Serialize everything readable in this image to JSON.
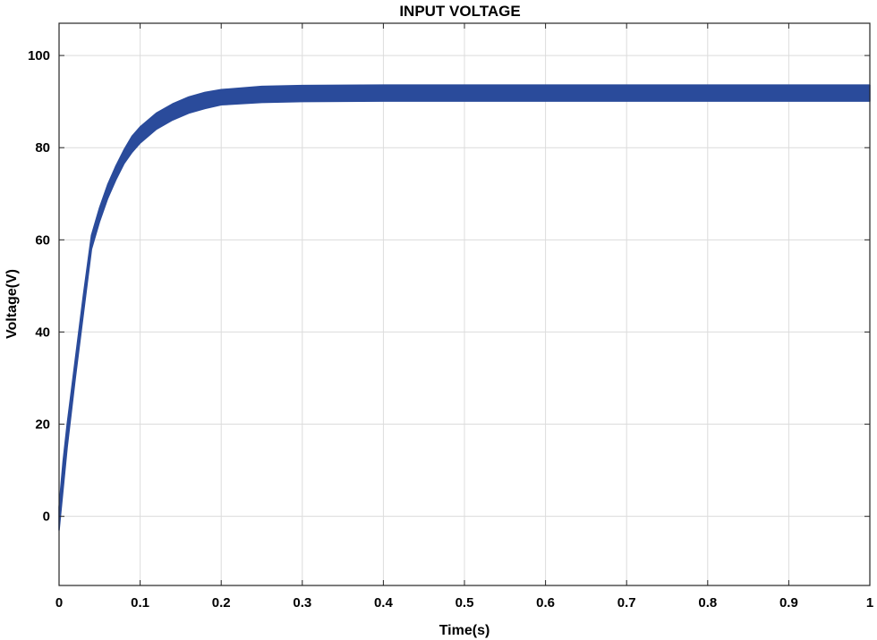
{
  "chart_data": {
    "type": "area",
    "title": "INPUT VOLTAGE",
    "xlabel": "Time(s)",
    "ylabel": "Voltage(V)",
    "xlim": [
      0,
      1
    ],
    "ylim": [
      -15,
      107
    ],
    "xticks": [
      0,
      0.1,
      0.2,
      0.3,
      0.4,
      0.5,
      0.6,
      0.7,
      0.8,
      0.9,
      1
    ],
    "xtick_labels": [
      "0",
      "0.1",
      "0.2",
      "0.3",
      "0.4",
      "0.5",
      "0.6",
      "0.7",
      "0.8",
      "0.9",
      "1"
    ],
    "yticks": [
      0,
      20,
      40,
      60,
      80,
      100
    ],
    "ytick_labels": [
      "0",
      "20",
      "40",
      "60",
      "80",
      "100"
    ],
    "grid": true,
    "series": [
      {
        "color": "#2a4b9b",
        "x": [
          0,
          0.005,
          0.01,
          0.02,
          0.03,
          0.04,
          0.05,
          0.06,
          0.07,
          0.08,
          0.09,
          0.1,
          0.12,
          0.14,
          0.16,
          0.18,
          0.2,
          0.25,
          0.3,
          0.4,
          0.5,
          0.6,
          0.7,
          0.8,
          0.9,
          1.0
        ],
        "upper": [
          2,
          12,
          20,
          34,
          48,
          61,
          67,
          72,
          76,
          79.5,
          82.5,
          84.5,
          87.5,
          89.5,
          91,
          92,
          92.6,
          93.3,
          93.5,
          93.6,
          93.6,
          93.6,
          93.6,
          93.6,
          93.6,
          93.6
        ],
        "lower": [
          -3,
          6,
          15,
          30,
          44,
          58,
          64,
          69,
          73,
          76.5,
          79,
          81,
          84,
          86,
          87.5,
          88.5,
          89.3,
          89.8,
          90,
          90.1,
          90.1,
          90.1,
          90.1,
          90.1,
          90.1,
          90.1
        ]
      }
    ]
  }
}
